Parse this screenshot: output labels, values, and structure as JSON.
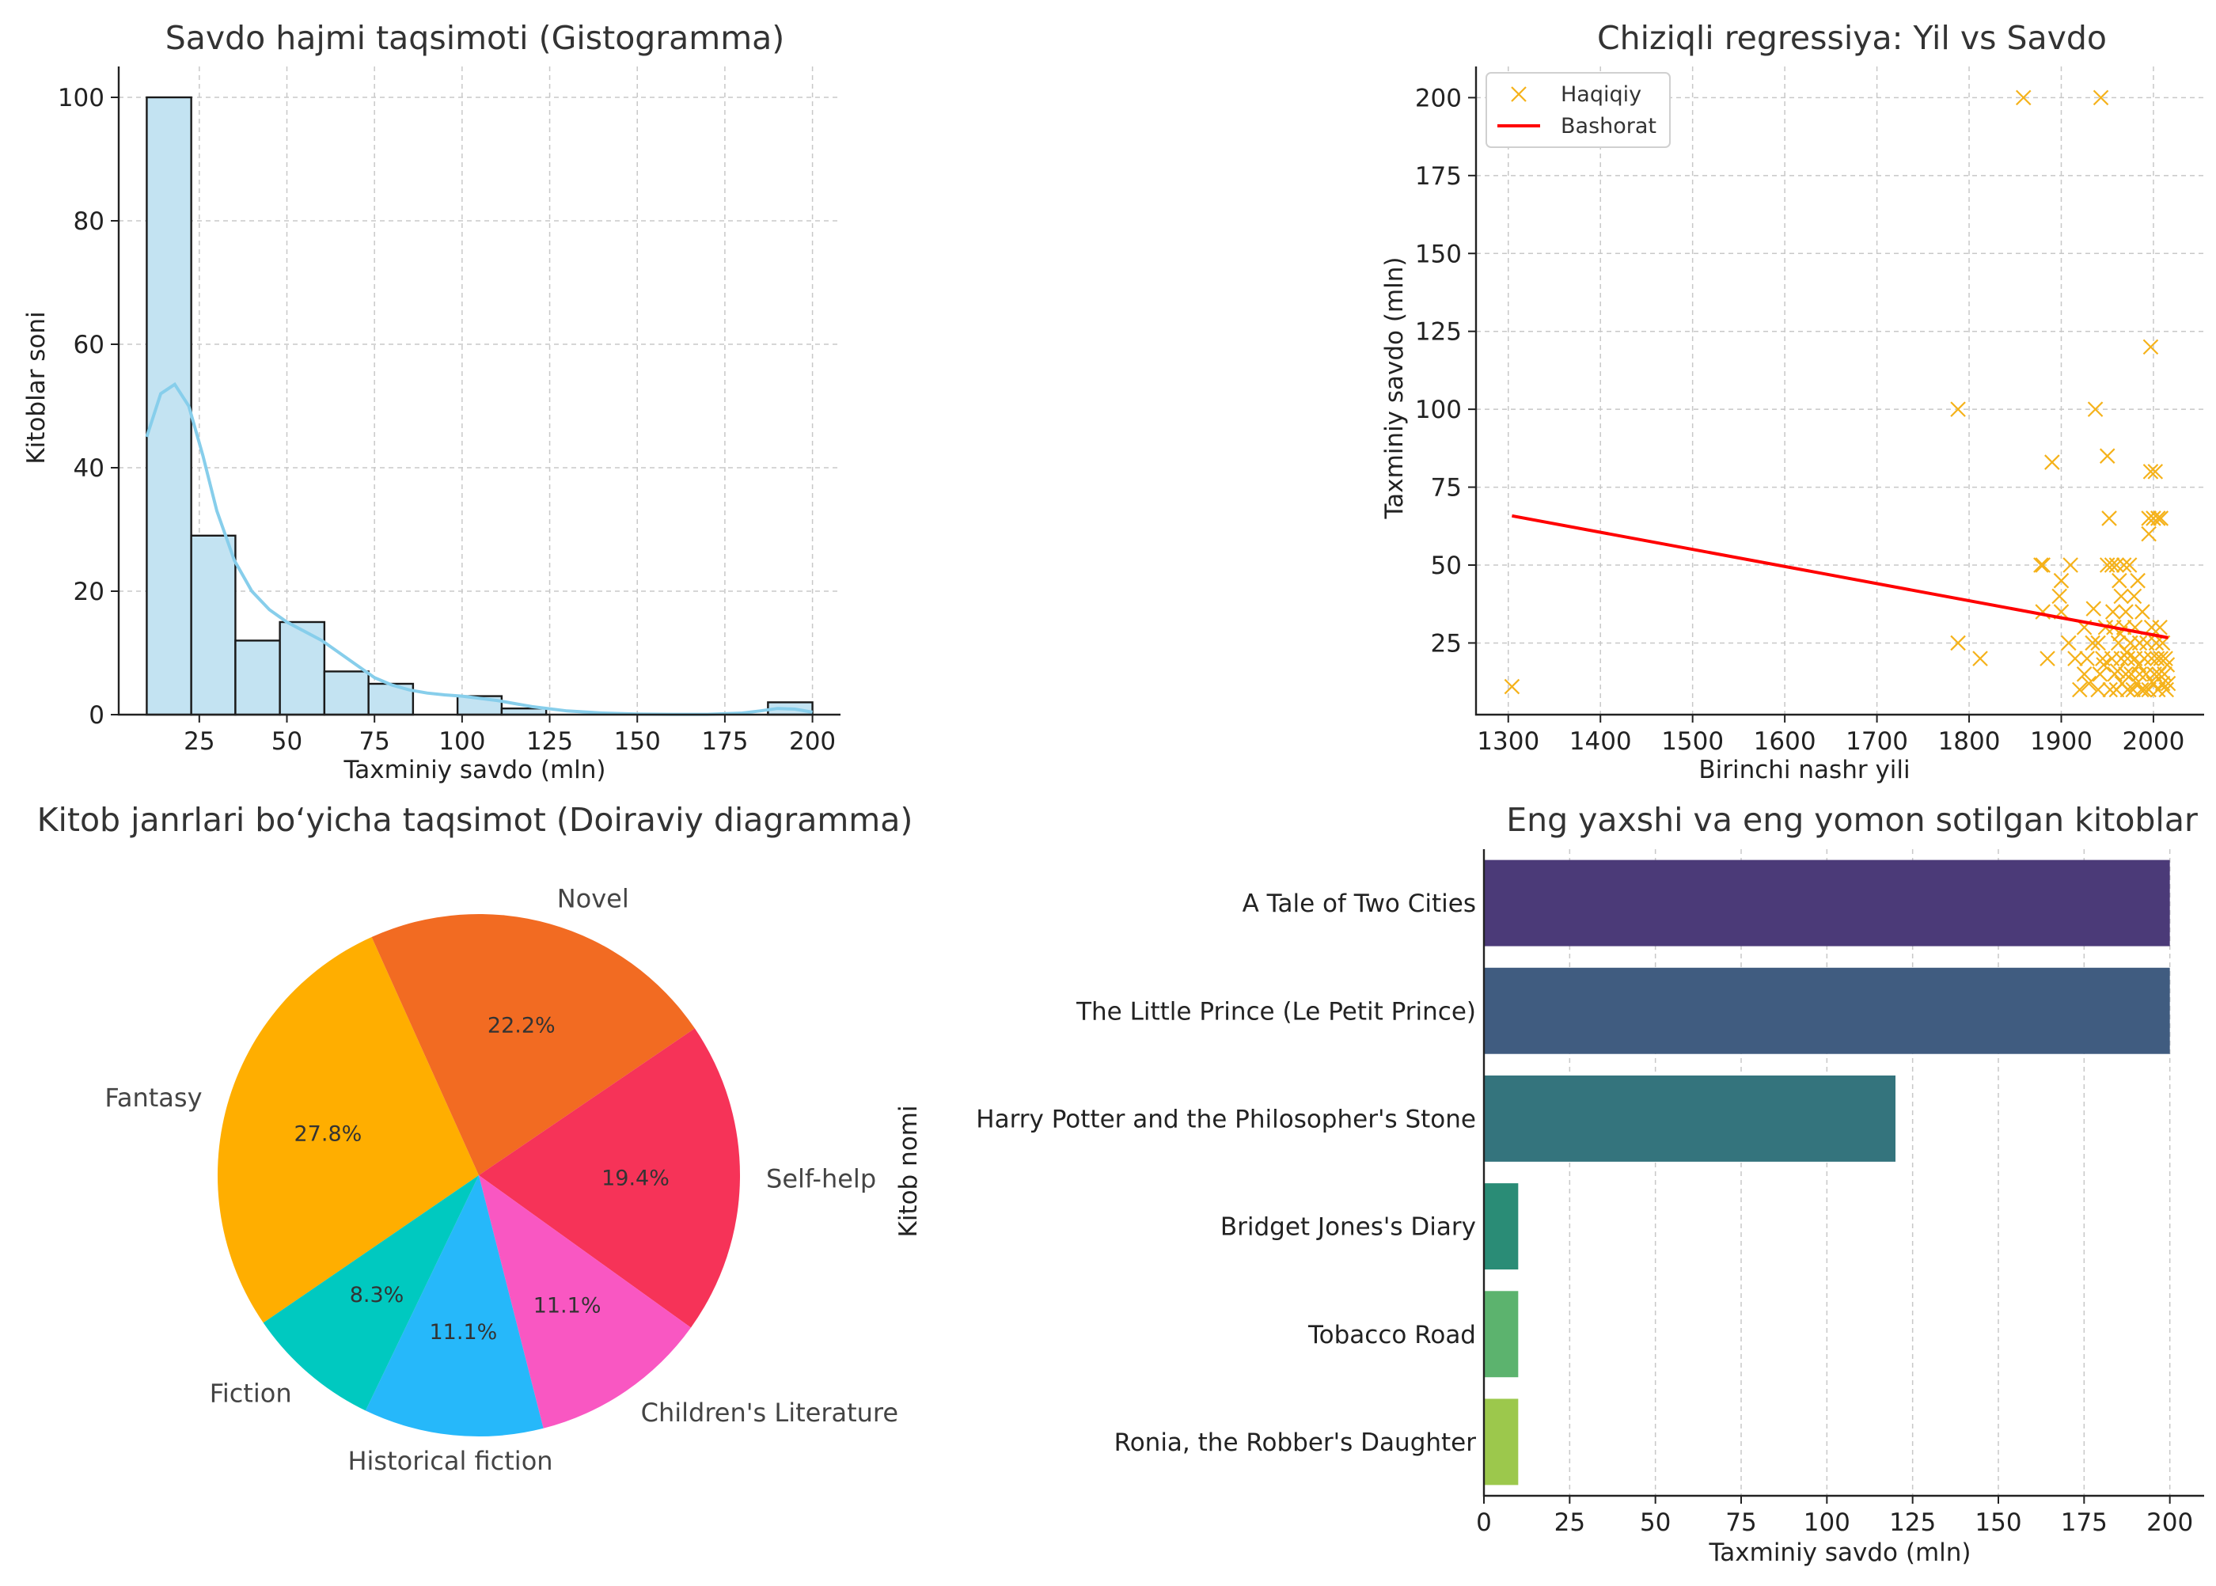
{
  "chart_data": [
    {
      "type": "bar",
      "subtype": "histogram",
      "title": "Savdo hajmi taqsimoti (Gistogramma)",
      "xlabel": "Taxminiy savdo (mln)",
      "ylabel": "Kitoblar soni",
      "xlim": [
        2,
        208
      ],
      "ylim": [
        0,
        105
      ],
      "xticks": [
        25,
        50,
        75,
        100,
        125,
        150,
        175,
        200
      ],
      "yticks": [
        0,
        20,
        40,
        60,
        80,
        100
      ],
      "grid": true,
      "bins": [
        {
          "x0": 10,
          "x1": 22.7,
          "count": 100
        },
        {
          "x0": 22.7,
          "x1": 35.3,
          "count": 29
        },
        {
          "x0": 35.3,
          "x1": 48,
          "count": 12
        },
        {
          "x0": 48,
          "x1": 60.7,
          "count": 15
        },
        {
          "x0": 60.7,
          "x1": 73.3,
          "count": 7
        },
        {
          "x0": 73.3,
          "x1": 86,
          "count": 5
        },
        {
          "x0": 86,
          "x1": 98.7,
          "count": 0
        },
        {
          "x0": 98.7,
          "x1": 111.3,
          "count": 3
        },
        {
          "x0": 111.3,
          "x1": 124,
          "count": 1
        },
        {
          "x0": 124,
          "x1": 136.7,
          "count": 0
        },
        {
          "x0": 136.7,
          "x1": 149.3,
          "count": 0
        },
        {
          "x0": 149.3,
          "x1": 162,
          "count": 0
        },
        {
          "x0": 162,
          "x1": 174.7,
          "count": 0
        },
        {
          "x0": 174.7,
          "x1": 187.3,
          "count": 0
        },
        {
          "x0": 187.3,
          "x1": 200,
          "count": 2
        }
      ],
      "kde": {
        "x": [
          10,
          14,
          18,
          22,
          26,
          30,
          35,
          40,
          45,
          50,
          55,
          60,
          65,
          70,
          75,
          80,
          85,
          90,
          95,
          100,
          110,
          120,
          130,
          140,
          150,
          160,
          170,
          180,
          185,
          190,
          195,
          200
        ],
        "y": [
          45,
          52,
          53.5,
          50,
          42,
          33,
          25,
          20,
          17,
          15,
          13.5,
          12,
          10,
          8,
          6,
          4.8,
          4,
          3.5,
          3.2,
          3,
          2.3,
          1.3,
          0.6,
          0.25,
          0.1,
          0.05,
          0.05,
          0.25,
          0.6,
          1.0,
          0.9,
          0.4
        ]
      },
      "colors": {
        "bar": "#c3e3f2",
        "edge": "#1a1a1a",
        "kde": "#87ceeb"
      }
    },
    {
      "type": "scatter",
      "title": "Chiziqli regressiya: Yil vs Savdo",
      "xlabel": "Birinchi nashr yili",
      "ylabel": "Taxminiy savdo (mln)",
      "xlim": [
        1265,
        2055
      ],
      "ylim": [
        2,
        210
      ],
      "xticks": [
        1300,
        1400,
        1500,
        1600,
        1700,
        1800,
        1900,
        2000
      ],
      "yticks": [
        25,
        50,
        75,
        100,
        125,
        150,
        175,
        200
      ],
      "grid": true,
      "legend": {
        "placement": "top-left",
        "entries": [
          "Haqiqiy",
          "Bashorat"
        ]
      },
      "series": [
        {
          "name": "Haqiqiy",
          "marker": "x",
          "color": "#f5b21a",
          "points": [
            [
              1304,
              11
            ],
            [
              1788,
              100
            ],
            [
              1788,
              25
            ],
            [
              1812,
              20
            ],
            [
              1859,
              200
            ],
            [
              1943,
              200
            ],
            [
              1997,
              120
            ],
            [
              1880,
              35
            ],
            [
              1885,
              20
            ],
            [
              1878,
              50
            ],
            [
              1880,
              50
            ],
            [
              1898,
              40
            ],
            [
              1900,
              45
            ],
            [
              1900,
              35
            ],
            [
              1890,
              83
            ],
            [
              1910,
              50
            ],
            [
              1908,
              25
            ],
            [
              1915,
              20
            ],
            [
              1920,
              10
            ],
            [
              1925,
              30
            ],
            [
              1925,
              15
            ],
            [
              1928,
              20
            ],
            [
              1930,
              12
            ],
            [
              1935,
              36
            ],
            [
              1937,
              100
            ],
            [
              1940,
              10
            ],
            [
              1940,
              25
            ],
            [
              1942,
              15
            ],
            [
              1945,
              20
            ],
            [
              1948,
              30
            ],
            [
              1950,
              50
            ],
            [
              1950,
              85
            ],
            [
              1952,
              65
            ],
            [
              1953,
              10
            ],
            [
              1955,
              50
            ],
            [
              1955,
              20
            ],
            [
              1957,
              30
            ],
            [
              1958,
              15
            ],
            [
              1960,
              50
            ],
            [
              1960,
              10
            ],
            [
              1962,
              25
            ],
            [
              1963,
              45
            ],
            [
              1965,
              20
            ],
            [
              1965,
              40
            ],
            [
              1966,
              12
            ],
            [
              1968,
              50
            ],
            [
              1968,
              30
            ],
            [
              1970,
              15
            ],
            [
              1970,
              35
            ],
            [
              1972,
              10
            ],
            [
              1972,
              20
            ],
            [
              1974,
              50
            ],
            [
              1975,
              25
            ],
            [
              1976,
              15
            ],
            [
              1978,
              10
            ],
            [
              1980,
              20
            ],
            [
              1980,
              30
            ],
            [
              1982,
              12
            ],
            [
              1983,
              45
            ],
            [
              1985,
              15
            ],
            [
              1985,
              25
            ],
            [
              1987,
              10
            ],
            [
              1988,
              35
            ],
            [
              1990,
              20
            ],
            [
              1990,
              10
            ],
            [
              1992,
              15
            ],
            [
              1993,
              25
            ],
            [
              1995,
              60
            ],
            [
              1995,
              65
            ],
            [
              1995,
              10
            ],
            [
              1997,
              80
            ],
            [
              1998,
              20
            ],
            [
              1998,
              30
            ],
            [
              2000,
              65
            ],
            [
              2000,
              12
            ],
            [
              2001,
              15
            ],
            [
              2002,
              80
            ],
            [
              2003,
              25
            ],
            [
              2004,
              20
            ],
            [
              2005,
              65
            ],
            [
              2005,
              10
            ],
            [
              2006,
              15
            ],
            [
              2007,
              30
            ],
            [
              2008,
              20
            ],
            [
              2008,
              65
            ],
            [
              2010,
              12
            ],
            [
              2010,
              25
            ],
            [
              2012,
              15
            ],
            [
              2013,
              20
            ],
            [
              2014,
              10
            ],
            [
              2015,
              18
            ],
            [
              2016,
              12
            ],
            [
              1934,
              25
            ],
            [
              1946,
              18
            ],
            [
              1956,
              35
            ],
            [
              1964,
              28
            ],
            [
              1979,
              40
            ],
            [
              1984,
              18
            ],
            [
              1971,
              22
            ],
            [
              1961,
              16
            ]
          ]
        },
        {
          "name": "Bashorat",
          "type": "line",
          "color": "#ff0000",
          "points": [
            [
              1304,
              65.8
            ],
            [
              2016,
              26.7
            ]
          ]
        }
      ]
    },
    {
      "type": "pie",
      "title": "Kitob janrlari bo‘yicha taqsimot (Doiraviy diagramma)",
      "slices": [
        {
          "label": "Fantasy",
          "value": 27.8,
          "pct": "27.8%",
          "color": "#ffae00"
        },
        {
          "label": "Novel",
          "value": 22.2,
          "pct": "22.2%",
          "color": "#f26b22"
        },
        {
          "label": "Self-help",
          "value": 19.4,
          "pct": "19.4%",
          "color": "#f63358"
        },
        {
          "label": "Children's Literature",
          "value": 11.1,
          "pct": "11.1%",
          "color": "#f957c2"
        },
        {
          "label": "Historical fiction",
          "value": 11.1,
          "pct": "11.1%",
          "color": "#26b8fa"
        },
        {
          "label": "Fiction",
          "value": 8.3,
          "pct": "8.3%",
          "color": "#00c9c0"
        }
      ]
    },
    {
      "type": "bar",
      "orientation": "horizontal",
      "title": "Eng yaxshi va eng yomon sotilgan kitoblar",
      "xlabel": "Taxminiy savdo (mln)",
      "ylabel": "Kitob nomi",
      "xlim": [
        0,
        210
      ],
      "xticks": [
        0,
        25,
        50,
        75,
        100,
        125,
        150,
        175,
        200
      ],
      "grid": true,
      "categories": [
        "A Tale of Two Cities",
        "The Little Prince (Le Petit Prince)",
        "Harry Potter and the Philosopher's Stone",
        "Bridget Jones's Diary",
        "Tobacco Road",
        "Ronia, the Robber's Daughter"
      ],
      "values": [
        200,
        200,
        120,
        10,
        10,
        10
      ],
      "colors": [
        "#4b3a78",
        "#405c80",
        "#34747d",
        "#2a8c76",
        "#5cb36e",
        "#9cc84c"
      ]
    }
  ]
}
